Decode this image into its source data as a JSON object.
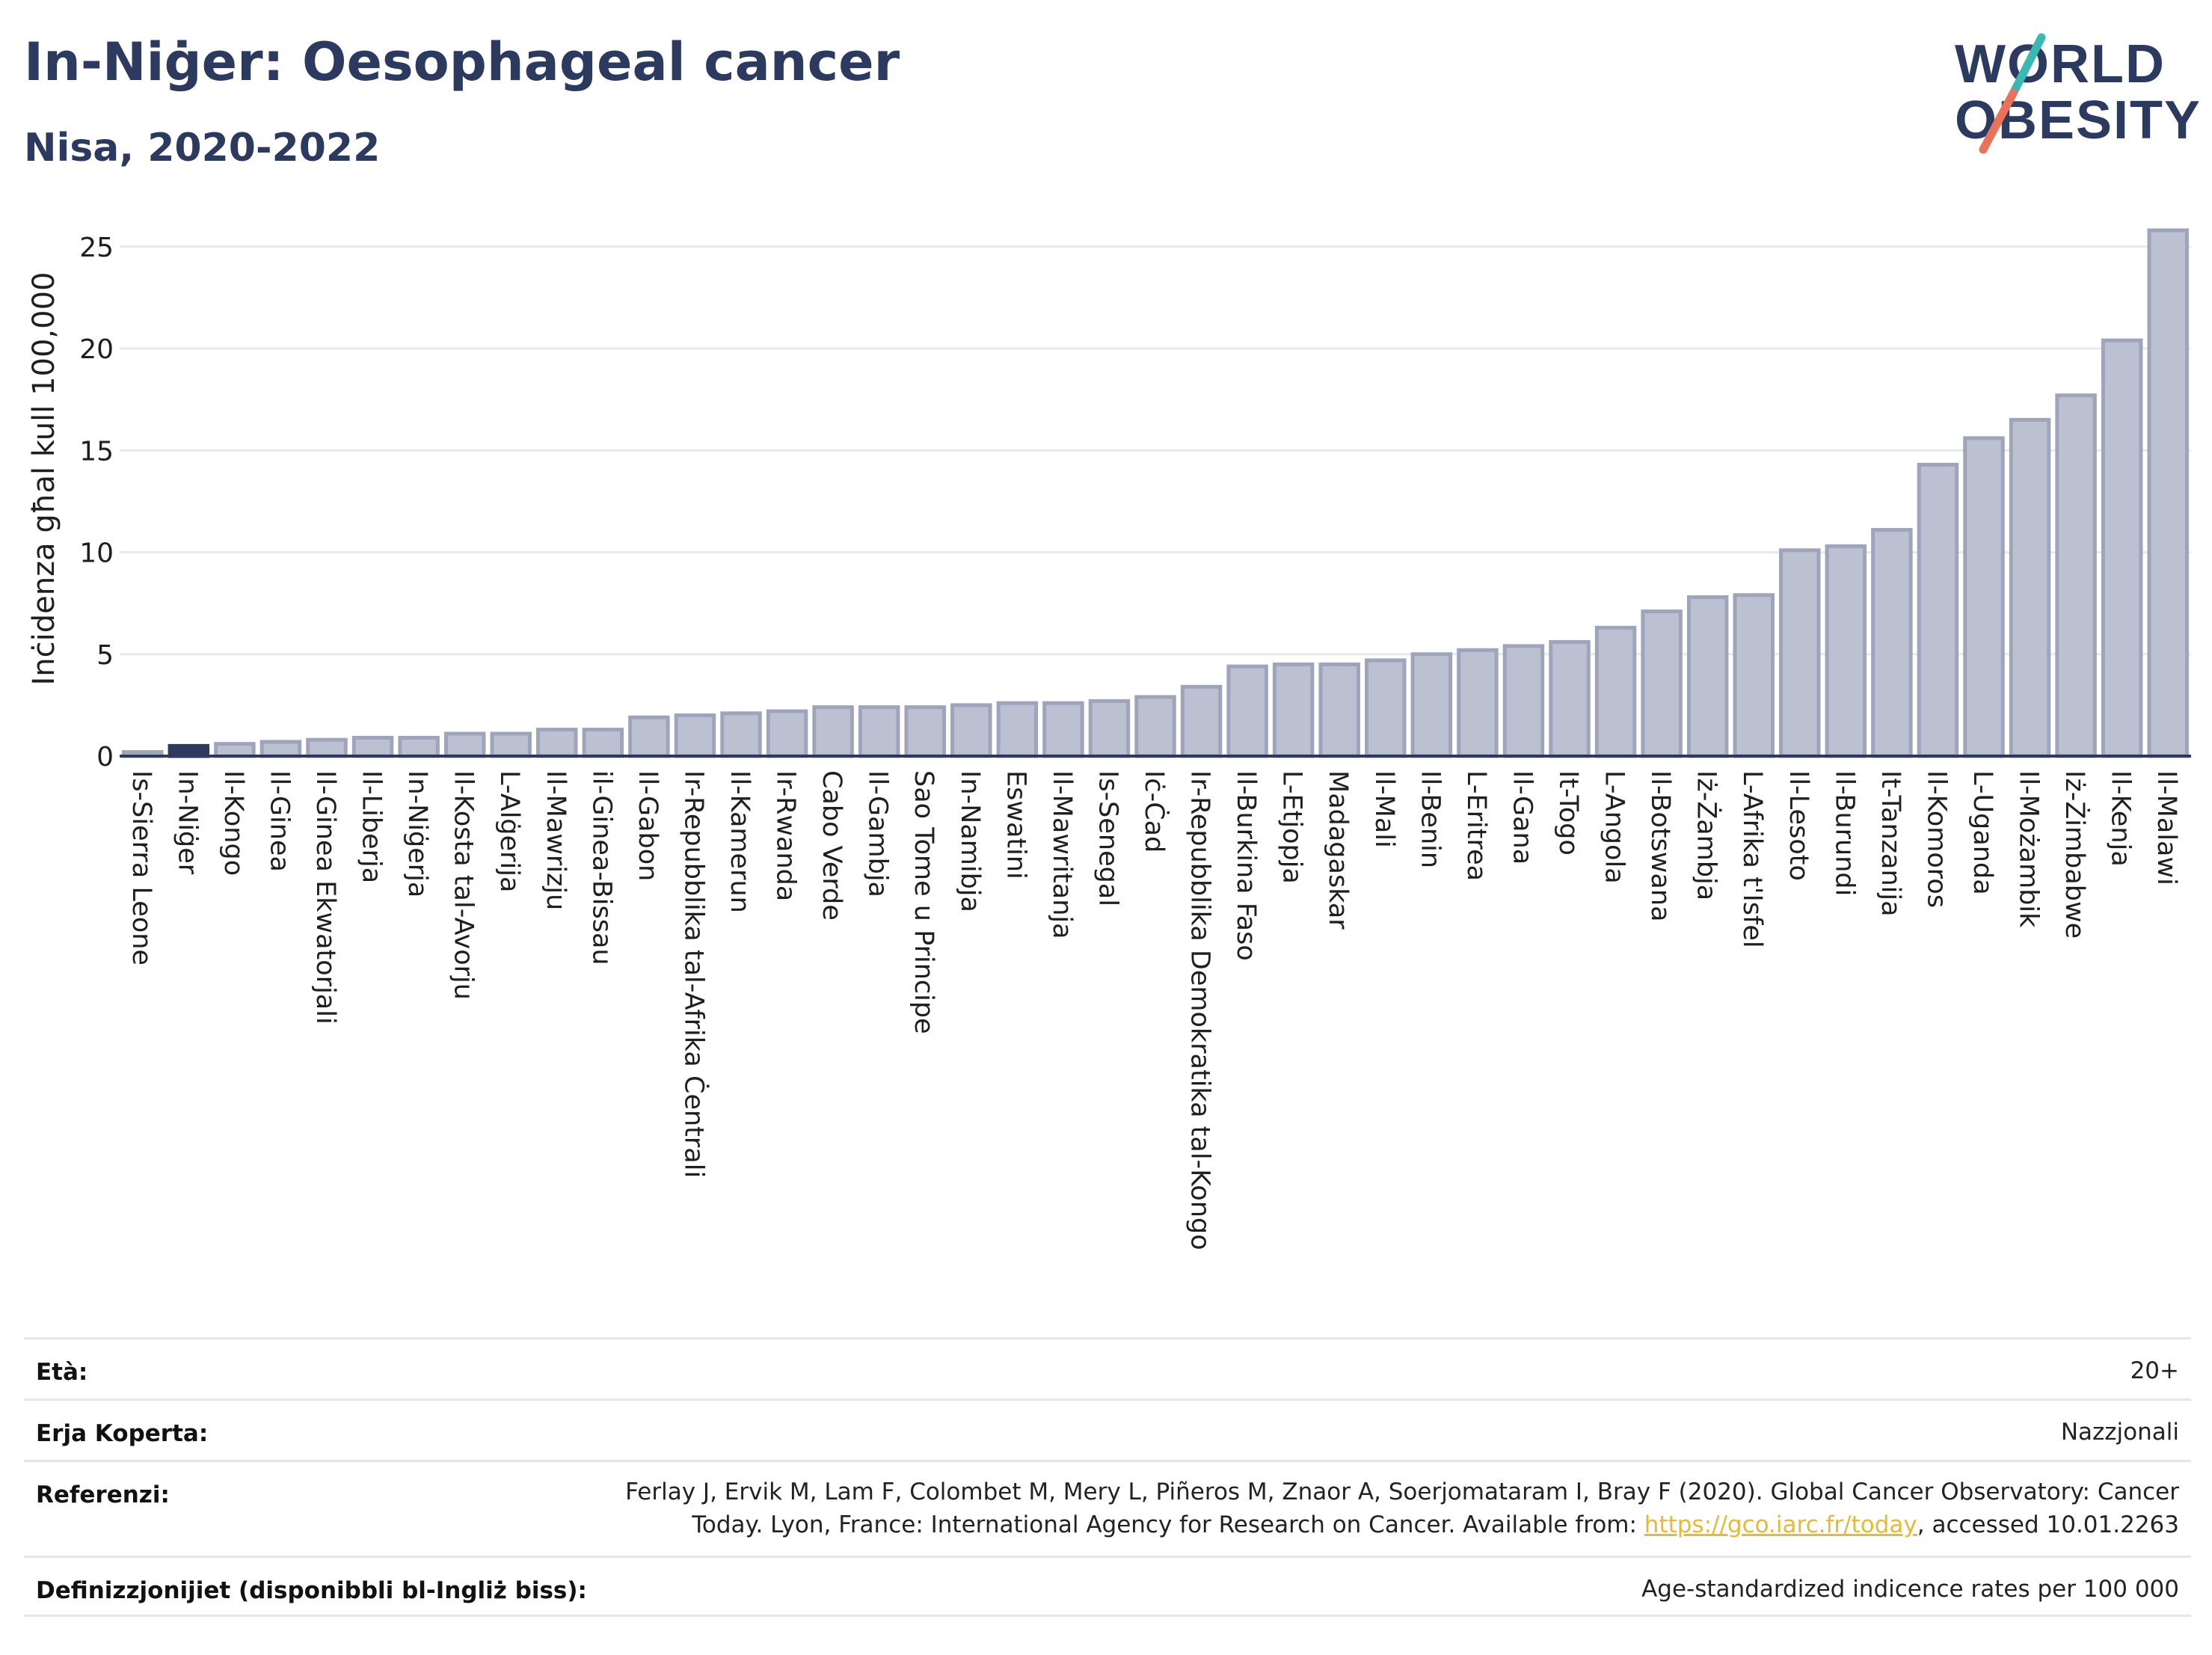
{
  "header": {
    "title": "In-Niġer: Oesophageal cancer",
    "subtitle": "Nisa, 2020-2022",
    "logo": {
      "line1": "WORLD",
      "line2": "OBESITY"
    }
  },
  "colors": {
    "highlight": "#2d3a5f",
    "bar_fill": "#bcc1d1",
    "bar_stroke": "#9ea4bb",
    "title": "#2d3a5f",
    "logo_teal": "#3cb8b2",
    "logo_coral": "#e8735a",
    "link": "#e6b93a"
  },
  "chart_data": {
    "type": "bar",
    "ylabel": "Inċidenza għal kull 100,000",
    "xlabel": "",
    "ylim": [
      0,
      27
    ],
    "yticks": [
      0,
      5,
      10,
      15,
      20,
      25
    ],
    "grid": true,
    "highlight_category": "In-Niġer",
    "categories": [
      "Is-Sierra Leone",
      "In-Niġer",
      "Il-Kongo",
      "Il-Ginea",
      "Il-Ginea Ekwatorjali",
      "Il-Liberja",
      "In-Niġerja",
      "Il-Kosta tal-Avorju",
      "L-Alġerija",
      "Il-Mawrizju",
      "il-Ginea-Bissau",
      "Il-Gabon",
      "Ir-Repubblika tal-Afrika Ċentrali",
      "Il-Kamerun",
      "Ir-Rwanda",
      "Cabo Verde",
      "Il-Gambja",
      "Sao Tome u Principe",
      "In-Namibja",
      "Eswatini",
      "Il-Mawritanja",
      "Is-Senegal",
      "Iċ-Ċad",
      "Ir-Repubblika Demokratika tal-Kongo",
      "Il-Burkina Faso",
      "L-Etjopja",
      "Madagaskar",
      "Il-Mali",
      "Il-Benin",
      "L-Eritrea",
      "Il-Gana",
      "It-Togo",
      "L-Angola",
      "Il-Botswana",
      "Iż-Żambja",
      "L-Afrika t'Isfel",
      "Il-Lesoto",
      "Il-Burundi",
      "It-Tanzanija",
      "Il-Komoros",
      "L-Uganda",
      "Il-Możambik",
      "Iż-Żimbabwe",
      "Il-Kenja",
      "Il-Malawi"
    ],
    "values": [
      0.2,
      0.5,
      0.6,
      0.7,
      0.8,
      0.9,
      0.9,
      1.1,
      1.1,
      1.3,
      1.3,
      1.9,
      2.0,
      2.1,
      2.2,
      2.4,
      2.4,
      2.4,
      2.5,
      2.6,
      2.6,
      2.7,
      2.9,
      3.4,
      4.4,
      4.5,
      4.5,
      4.7,
      5.0,
      5.2,
      5.4,
      5.6,
      6.3,
      7.1,
      7.8,
      7.9,
      10.1,
      10.3,
      11.1,
      14.3,
      15.6,
      16.5,
      17.7,
      20.4,
      25.8
    ]
  },
  "info": {
    "age_label": "Età:",
    "age_value": "20+",
    "area_label": "Erja Koperta:",
    "area_value": "Nazzjonali",
    "ref_label": "Referenzi:",
    "ref_text_1": "Ferlay J, Ervik M, Lam F, Colombet M, Mery L, Piñeros M, Znaor A, Soerjomataram I, Bray F (2020). Global Cancer Observatory: Cancer",
    "ref_text_2": "Today. Lyon, France: International Agency for Research on Cancer. Available from: ",
    "ref_link": "https://gco.iarc.fr/today",
    "ref_text_3": ", accessed 10.01.2263",
    "def_label": "Definizzjonijiet (disponibbli bl-Ingliż biss):",
    "def_value": "Age-standardized indicence rates per 100 000"
  }
}
